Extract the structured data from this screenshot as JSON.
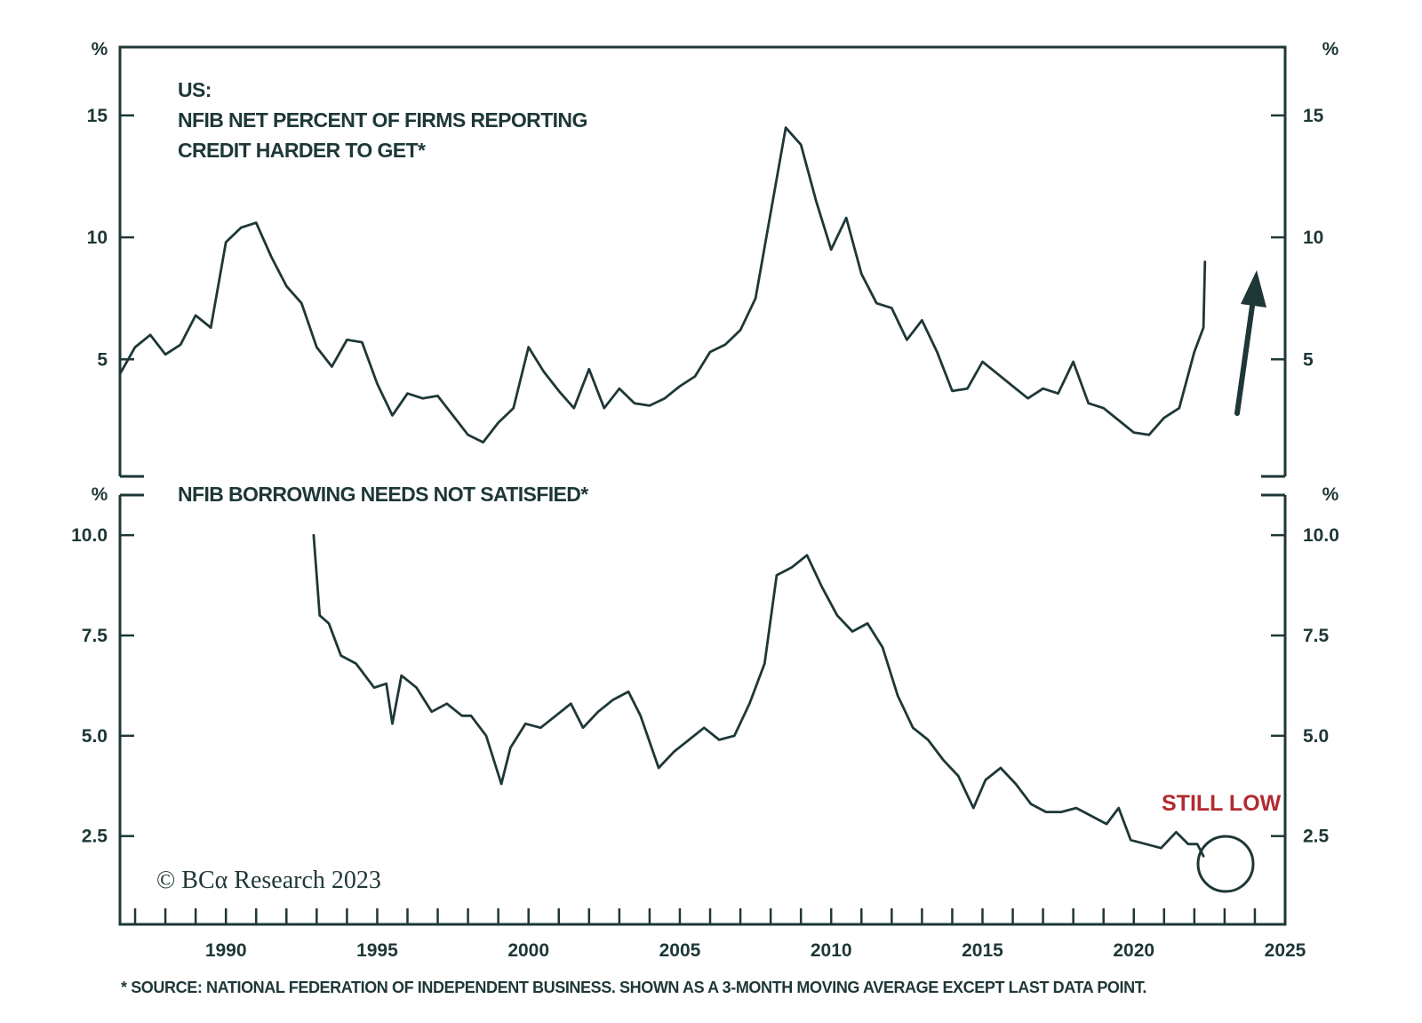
{
  "chart_data": [
    {
      "type": "line",
      "title": "US:",
      "subtitle_lines": [
        "NFIB NET PERCENT OF FIRMS REPORTING",
        "CREDIT HARDER TO GET*"
      ],
      "unit": "%",
      "xlim": [
        1986.5,
        2025
      ],
      "ylim": [
        0.2,
        17.8
      ],
      "y_ticks": [
        5,
        10,
        15
      ],
      "y_tick_labels": [
        "5",
        "10",
        "15"
      ],
      "axes": "left and right",
      "grid": false,
      "series": [
        {
          "color": "#1e3737",
          "x": [
            1986.5,
            1987.0,
            1987.5,
            1988.0,
            1988.5,
            1989.0,
            1989.5,
            1990.0,
            1990.5,
            1991.0,
            1991.5,
            1992.0,
            1992.5,
            1993.0,
            1993.5,
            1994.0,
            1994.5,
            1995.0,
            1995.5,
            1996.0,
            1996.5,
            1997.0,
            1997.5,
            1998.0,
            1998.5,
            1999.0,
            1999.5,
            2000.0,
            2000.5,
            2001.0,
            2001.5,
            2002.0,
            2002.5,
            2003.0,
            2003.5,
            2004.0,
            2004.5,
            2005.0,
            2005.5,
            2006.0,
            2006.5,
            2007.0,
            2007.5,
            2008.0,
            2008.5,
            2009.0,
            2009.5,
            2010.0,
            2010.5,
            2011.0,
            2011.5,
            2012.0,
            2012.5,
            2013.0,
            2013.5,
            2014.0,
            2014.5,
            2015.0,
            2015.5,
            2016.0,
            2016.5,
            2017.0,
            2017.5,
            2018.0,
            2018.5,
            2019.0,
            2019.5,
            2020.0,
            2020.5,
            2021.0,
            2021.5,
            2022.0,
            2022.3,
            2022.35
          ],
          "values": [
            4.4,
            5.5,
            6.0,
            5.2,
            5.6,
            6.8,
            6.3,
            9.8,
            10.4,
            10.6,
            9.2,
            8.0,
            7.3,
            5.5,
            4.7,
            5.8,
            5.7,
            4.0,
            2.7,
            3.6,
            3.4,
            3.5,
            2.7,
            1.9,
            1.6,
            2.4,
            3.0,
            5.5,
            4.5,
            3.7,
            3.0,
            4.6,
            3.0,
            3.8,
            3.2,
            3.1,
            3.4,
            3.9,
            4.3,
            5.3,
            5.6,
            6.2,
            7.5,
            11.0,
            14.5,
            13.8,
            11.5,
            9.5,
            10.8,
            8.5,
            7.3,
            7.1,
            5.8,
            6.6,
            5.3,
            3.7,
            3.8,
            4.9,
            4.4,
            3.9,
            3.4,
            3.8,
            3.6,
            4.9,
            3.2,
            3.0,
            2.5,
            2.0,
            1.9,
            2.6,
            3.0,
            5.3,
            6.3,
            9.0
          ]
        }
      ]
    },
    {
      "type": "line",
      "title": "NFIB BORROWING NEEDS NOT SATISFIED*",
      "unit": "%",
      "xlim": [
        1986.5,
        2025
      ],
      "ylim": [
        0.3,
        11.0
      ],
      "y_ticks": [
        2.5,
        5.0,
        7.5,
        10.0
      ],
      "y_tick_labels": [
        "2.5",
        "5.0",
        "7.5",
        "10.0"
      ],
      "x_ticks": [
        1990,
        1995,
        2000,
        2005,
        2010,
        2015,
        2020,
        2025
      ],
      "x_tick_labels": [
        "1990",
        "1995",
        "2000",
        "2005",
        "2010",
        "2015",
        "2020",
        "2025"
      ],
      "x_minor_ticks_per_year": true,
      "axes": "left and right",
      "grid": false,
      "annotation": "STILL LOW",
      "series": [
        {
          "color": "#1e3737",
          "x": [
            1992.9,
            1993.1,
            1993.4,
            1993.8,
            1994.3,
            1994.9,
            1995.3,
            1995.5,
            1995.8,
            1996.3,
            1996.8,
            1997.3,
            1997.8,
            1998.1,
            1998.6,
            1999.1,
            1999.4,
            1999.9,
            2000.4,
            2000.9,
            2001.4,
            2001.8,
            2002.3,
            2002.8,
            2003.3,
            2003.7,
            2004.3,
            2004.8,
            2005.3,
            2005.8,
            2006.3,
            2006.8,
            2007.3,
            2007.8,
            2008.2,
            2008.7,
            2009.2,
            2009.7,
            2010.2,
            2010.7,
            2011.2,
            2011.7,
            2012.2,
            2012.7,
            2013.2,
            2013.7,
            2014.2,
            2014.7,
            2015.1,
            2015.6,
            2016.1,
            2016.6,
            2017.1,
            2017.6,
            2018.1,
            2018.6,
            2019.1,
            2019.5,
            2019.9,
            2020.4,
            2020.9,
            2021.4,
            2021.8,
            2022.1,
            2022.3
          ],
          "values": [
            10.0,
            8.0,
            7.8,
            7.0,
            6.8,
            6.2,
            6.3,
            5.3,
            6.5,
            6.2,
            5.6,
            5.8,
            5.5,
            5.5,
            5.0,
            3.8,
            4.7,
            5.3,
            5.2,
            5.5,
            5.8,
            5.2,
            5.6,
            5.9,
            6.1,
            5.5,
            4.2,
            4.6,
            4.9,
            5.2,
            4.9,
            5.0,
            5.8,
            6.8,
            9.0,
            9.2,
            9.5,
            8.7,
            8.0,
            7.6,
            7.8,
            7.2,
            6.0,
            5.2,
            4.9,
            4.4,
            4.0,
            3.2,
            3.9,
            4.2,
            3.8,
            3.3,
            3.1,
            3.1,
            3.2,
            3.0,
            2.8,
            3.2,
            2.4,
            2.3,
            2.2,
            2.6,
            2.3,
            2.3,
            2.0
          ]
        }
      ]
    }
  ],
  "copyright": "© BCα Research 2023",
  "footnote": "* SOURCE: NATIONAL FEDERATION OF INDEPENDENT BUSINESS. SHOWN AS A 3-MONTH MOVING AVERAGE EXCEPT LAST DATA POINT.",
  "colors": {
    "ink": "#1e3737",
    "accent_red": "#b22a30",
    "background": "#ffffff"
  }
}
